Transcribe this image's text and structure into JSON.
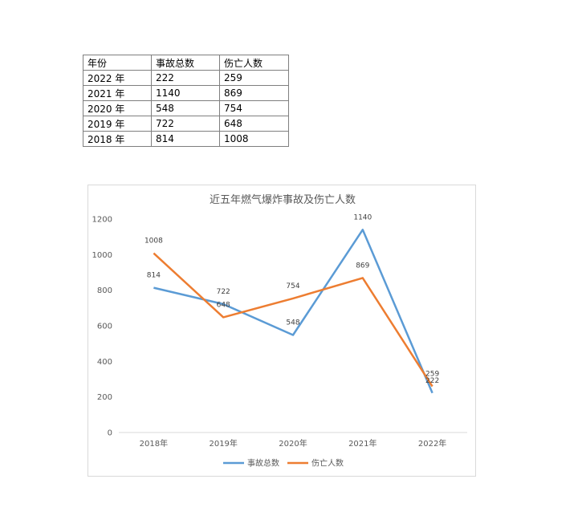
{
  "table": {
    "headers": [
      "年份",
      "事故总数",
      "伤亡人数"
    ],
    "rows": [
      [
        "2022 年",
        "222",
        "259"
      ],
      [
        "2021 年",
        "1140",
        "869"
      ],
      [
        "2020 年",
        "548",
        "754"
      ],
      [
        "2019 年",
        "722",
        "648"
      ],
      [
        "2018 年",
        "814",
        "1008"
      ]
    ]
  },
  "chart_data": {
    "type": "line",
    "title": "近五年燃气爆炸事故及伤亡人数",
    "categories": [
      "2018年",
      "2019年",
      "2020年",
      "2021年",
      "2022年"
    ],
    "series": [
      {
        "name": "事故总数",
        "values": [
          814,
          722,
          548,
          1140,
          222
        ],
        "color": "#5b9bd5"
      },
      {
        "name": "伤亡人数",
        "values": [
          1008,
          648,
          754,
          869,
          259
        ],
        "color": "#ed7d31"
      }
    ],
    "ylim": [
      0,
      1200
    ],
    "yticks": [
      0,
      200,
      400,
      600,
      800,
      1000,
      1200
    ],
    "grid": false,
    "legend_position": "bottom",
    "data_labels": true
  }
}
